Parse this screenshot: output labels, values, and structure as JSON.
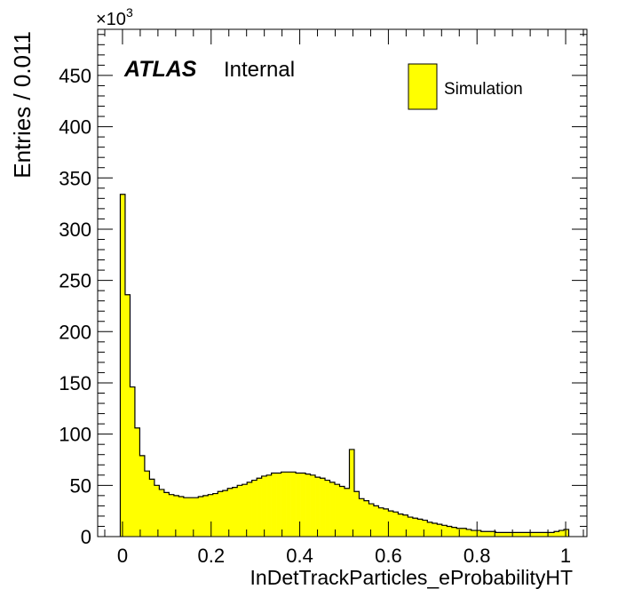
{
  "chart_data": {
    "type": "bar",
    "xlabel": "InDetTrackParticles_eProbabilityHT",
    "ylabel": "Entries / 0.011",
    "multiplier": "×10",
    "multiplier_exp": "3",
    "atlas_label": "ATLAS",
    "atlas_sub": "Internal",
    "legend": [
      {
        "label": "Simulation",
        "color": "#ffff00"
      }
    ],
    "legend_position": "top-right",
    "xlim": [
      -0.056,
      1.048
    ],
    "ylim": [
      0,
      495
    ],
    "x_ticks": [
      0,
      0.2,
      0.4,
      0.6,
      0.8,
      1
    ],
    "x_tick_labels": [
      "0",
      "0.2",
      "0.4",
      "0.6",
      "0.8",
      "1"
    ],
    "y_ticks": [
      0,
      50,
      100,
      150,
      200,
      250,
      300,
      350,
      400,
      450
    ],
    "y_tick_labels": [
      "0",
      "50",
      "100",
      "150",
      "200",
      "250",
      "300",
      "350",
      "400",
      "450"
    ],
    "grid": false,
    "bin_start": -0.005,
    "bin_width": 0.011,
    "series": [
      {
        "fill": "#ffff00",
        "values": [
          334,
          236,
          146,
          106,
          79,
          64,
          56,
          50,
          46,
          43,
          41,
          40,
          39,
          38,
          38,
          38,
          39,
          40,
          41,
          42,
          44,
          45,
          47,
          48,
          50,
          51,
          53,
          55,
          57,
          59,
          60,
          62,
          62,
          63,
          63,
          63,
          62,
          62,
          61,
          60,
          58,
          57,
          55,
          53,
          51,
          49,
          47,
          85,
          44,
          37,
          35,
          32,
          30,
          28,
          27,
          25,
          24,
          22,
          21,
          19,
          18,
          17,
          16,
          14,
          13,
          12,
          11,
          10,
          9,
          8,
          8,
          7,
          6,
          6,
          5,
          5,
          5,
          4,
          4,
          4,
          4,
          4,
          4,
          4,
          4,
          4,
          4,
          4,
          4,
          5,
          6,
          7
        ]
      }
    ]
  }
}
